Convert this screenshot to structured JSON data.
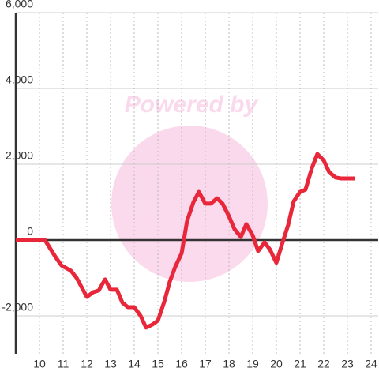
{
  "chart_data": {
    "type": "line",
    "watermark": "Powered by",
    "x": [
      9,
      10.23,
      10.67,
      10.93,
      11.33,
      11.57,
      12,
      12.27,
      12.5,
      12.77,
      13,
      13.27,
      13.5,
      13.73,
      14,
      14.27,
      14.5,
      14.77,
      15,
      15.27,
      15.5,
      15.73,
      16,
      16.23,
      16.5,
      16.73,
      17,
      17.23,
      17.5,
      17.73,
      18,
      18.23,
      18.5,
      18.73,
      19,
      19.23,
      19.5,
      19.73,
      20,
      20.23,
      20.5,
      20.73,
      21,
      21.23,
      21.5,
      21.73,
      22,
      22.23,
      22.5,
      22.73,
      23,
      23.3
    ],
    "series": [
      {
        "color": "#e8273a",
        "values": [
          0,
          0,
          -440,
          -670,
          -810,
          -1000,
          -1500,
          -1375,
          -1330,
          -1040,
          -1310,
          -1310,
          -1650,
          -1770,
          -1770,
          -2000,
          -2310,
          -2230,
          -2125,
          -1625,
          -1100,
          -710,
          -350,
          500,
          1000,
          1270,
          960,
          960,
          1100,
          960,
          625,
          290,
          80,
          420,
          125,
          -290,
          -60,
          -250,
          -600,
          -125,
          400,
          1020,
          1270,
          1330,
          1900,
          2270,
          2100,
          1790,
          1650,
          1625,
          1625,
          1625
        ]
      }
    ],
    "xlim": [
      9,
      24.3
    ],
    "xticks": [
      10,
      11,
      12,
      13,
      14,
      15,
      16,
      17,
      18,
      19,
      20,
      21,
      22,
      23,
      24
    ],
    "ylim": [
      -3000,
      6000
    ],
    "yticks": [
      {
        "value": -2000,
        "label": "-2,000"
      },
      0,
      {
        "value": 2000,
        "label": "2,000"
      },
      {
        "value": 4000,
        "label": "4,000"
      },
      {
        "value": 6000,
        "label": "6,000"
      }
    ],
    "grid": true
  }
}
